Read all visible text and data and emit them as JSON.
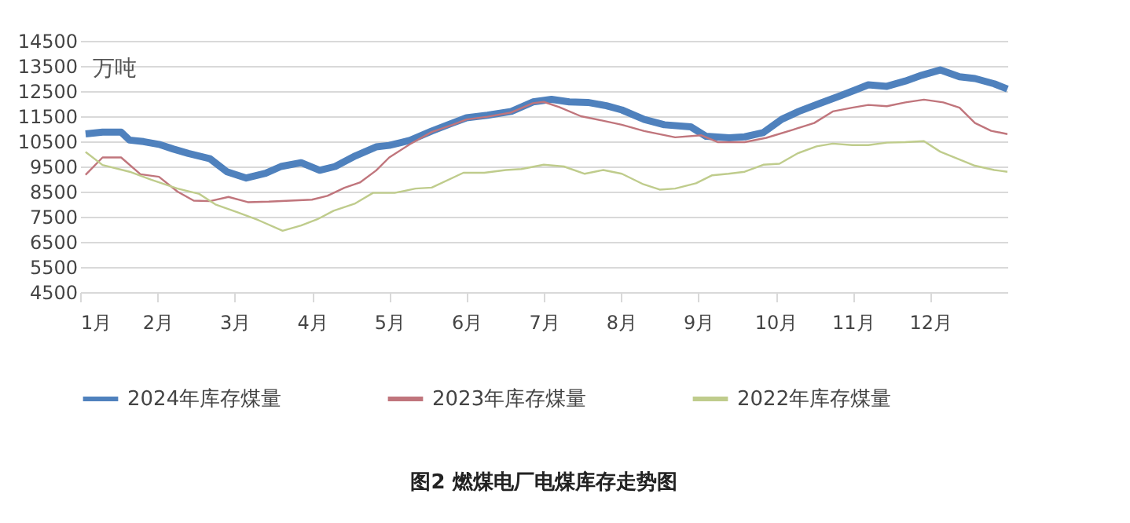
{
  "chart_data": {
    "type": "line",
    "title": "图2  燃煤电厂电煤库存走势图",
    "ylabel": "万吨",
    "xlim": [
      1,
      13
    ],
    "xticks": [
      {
        "value": 1,
        "label": "1月"
      },
      {
        "value": 2,
        "label": "2月"
      },
      {
        "value": 3,
        "label": "3月"
      },
      {
        "value": 4,
        "label": "4月"
      },
      {
        "value": 5,
        "label": "5月"
      },
      {
        "value": 6,
        "label": "6月"
      },
      {
        "value": 7,
        "label": "7月"
      },
      {
        "value": 8,
        "label": "8月"
      },
      {
        "value": 9,
        "label": "9月"
      },
      {
        "value": 10,
        "label": "10月"
      },
      {
        "value": 11,
        "label": "11月"
      },
      {
        "value": 12,
        "label": "12月"
      }
    ],
    "ylim": [
      4500,
      14500
    ],
    "yticks": [
      4500,
      5500,
      6500,
      7500,
      8500,
      9500,
      10500,
      11500,
      12500,
      13500,
      14500
    ],
    "grid": "y",
    "legend": "bottom",
    "marker": "none",
    "line_style": "solid",
    "series": [
      {
        "name": "2024年库存煤量",
        "color": "#4f81bd",
        "x": [
          1.07,
          1.29,
          1.53,
          1.64,
          1.82,
          2.02,
          2.2,
          2.4,
          2.68,
          2.9,
          3.15,
          3.4,
          3.6,
          3.86,
          4.1,
          4.3,
          4.56,
          4.83,
          5.0,
          5.27,
          5.55,
          5.82,
          6.0,
          6.27,
          6.58,
          6.86,
          7.1,
          7.33,
          7.57,
          7.81,
          8.01,
          8.3,
          8.56,
          8.9,
          9.1,
          9.4,
          9.6,
          9.84,
          10.08,
          10.3,
          10.57,
          10.85,
          11.06,
          11.2,
          11.44,
          11.68,
          11.89,
          12.13,
          12.38,
          12.58,
          12.83,
          13.0
        ],
        "values": [
          10800,
          10870,
          10870,
          10550,
          10490,
          10380,
          10200,
          10020,
          9810,
          9290,
          9040,
          9230,
          9500,
          9650,
          9350,
          9500,
          9920,
          10280,
          10340,
          10540,
          10910,
          11230,
          11440,
          11540,
          11690,
          12070,
          12170,
          12070,
          12050,
          11920,
          11750,
          11370,
          11160,
          11080,
          10700,
          10640,
          10680,
          10850,
          11380,
          11690,
          12010,
          12330,
          12580,
          12750,
          12690,
          12900,
          13130,
          13340,
          13070,
          13000,
          12790,
          12580
        ]
      },
      {
        "name": "2023年库存煤量",
        "color": "#c0757c",
        "x": [
          1.07,
          1.29,
          1.53,
          1.78,
          2.02,
          2.26,
          2.47,
          2.68,
          2.92,
          3.17,
          3.44,
          3.72,
          4.0,
          4.2,
          4.42,
          4.62,
          4.83,
          5.0,
          5.27,
          5.55,
          5.82,
          6.0,
          6.27,
          6.58,
          6.86,
          7.0,
          7.2,
          7.48,
          7.75,
          8.01,
          8.3,
          8.7,
          9.04,
          9.25,
          9.6,
          9.88,
          10.22,
          10.5,
          10.74,
          10.99,
          11.2,
          11.44,
          11.68,
          11.92,
          12.17,
          12.38,
          12.58,
          12.79,
          13.0
        ],
        "values": [
          9170,
          9860,
          9860,
          9190,
          9090,
          8500,
          8140,
          8120,
          8290,
          8080,
          8100,
          8140,
          8180,
          8330,
          8650,
          8860,
          9340,
          9860,
          10390,
          10870,
          11160,
          11370,
          11480,
          11650,
          12020,
          12070,
          11860,
          11500,
          11330,
          11160,
          10910,
          10660,
          10740,
          10470,
          10470,
          10640,
          10960,
          11230,
          11690,
          11840,
          11950,
          11900,
          12050,
          12160,
          12050,
          11840,
          11230,
          10920,
          10790
        ]
      },
      {
        "name": "2022年库存煤量",
        "color": "#bfcc8c",
        "x": [
          1.07,
          1.29,
          1.64,
          1.92,
          2.26,
          2.54,
          2.75,
          3.03,
          3.31,
          3.62,
          3.86,
          4.07,
          4.28,
          4.56,
          4.79,
          5.07,
          5.34,
          5.55,
          5.96,
          6.23,
          6.51,
          6.71,
          7.0,
          7.26,
          7.53,
          7.77,
          8.01,
          8.29,
          8.5,
          8.7,
          8.97,
          9.18,
          9.39,
          9.6,
          9.84,
          10.05,
          10.29,
          10.53,
          10.74,
          10.99,
          11.2,
          11.44,
          11.68,
          11.92,
          12.13,
          12.38,
          12.58,
          12.83,
          13.0
        ],
        "values": [
          10080,
          9560,
          9290,
          8970,
          8620,
          8410,
          7990,
          7680,
          7360,
          6940,
          7150,
          7400,
          7740,
          8030,
          8450,
          8450,
          8620,
          8660,
          9250,
          9250,
          9360,
          9400,
          9570,
          9500,
          9210,
          9360,
          9210,
          8790,
          8580,
          8620,
          8830,
          9150,
          9210,
          9290,
          9570,
          9610,
          10030,
          10300,
          10410,
          10350,
          10350,
          10450,
          10470,
          10510,
          10090,
          9780,
          9530,
          9360,
          9290
        ]
      }
    ]
  }
}
